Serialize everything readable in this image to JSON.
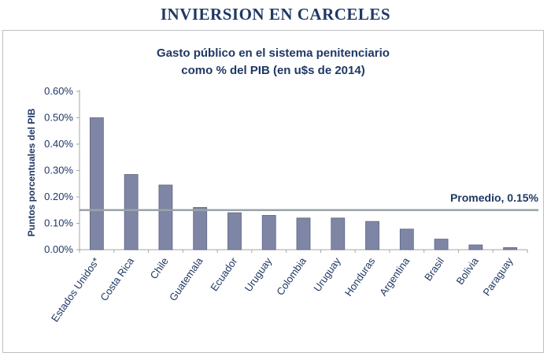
{
  "page": {
    "title": "INVIERSION EN CARCELES"
  },
  "colors": {
    "title": "#1f3864",
    "bar": "#7f86a5",
    "bar_edge": "#5d6483",
    "average_line": "#9aa3a8",
    "frame": "#bfbfbf"
  },
  "chart_data": {
    "type": "bar",
    "title_lines": [
      "Gasto público en el sistema penitenciario",
      "como % del PIB (en u$s de 2014)"
    ],
    "ylabel": "Puntos porcentuales del PIB",
    "xlabel": "",
    "ylim": [
      0,
      0.6
    ],
    "yticks": [
      0,
      0.1,
      0.2,
      0.3,
      0.4,
      0.5,
      0.6
    ],
    "ytick_labels": [
      "0.00%",
      "0.10%",
      "0.20%",
      "0.30%",
      "0.40%",
      "0.50%",
      "0.60%"
    ],
    "categories": [
      "Estados Unidos*",
      "Costa Rica",
      "Chile",
      "Guatemala",
      "Ecuador",
      "Uruguay",
      "Colombia",
      "Uruguay",
      "Honduras",
      "Argentina",
      "Brasil",
      "Bolivia",
      "Paraguay"
    ],
    "values": [
      0.5,
      0.285,
      0.245,
      0.16,
      0.14,
      0.13,
      0.12,
      0.12,
      0.107,
      0.078,
      0.04,
      0.018,
      0.008
    ],
    "average": {
      "value": 0.15,
      "label": "Promedio, 0.15%"
    },
    "grid": false
  }
}
